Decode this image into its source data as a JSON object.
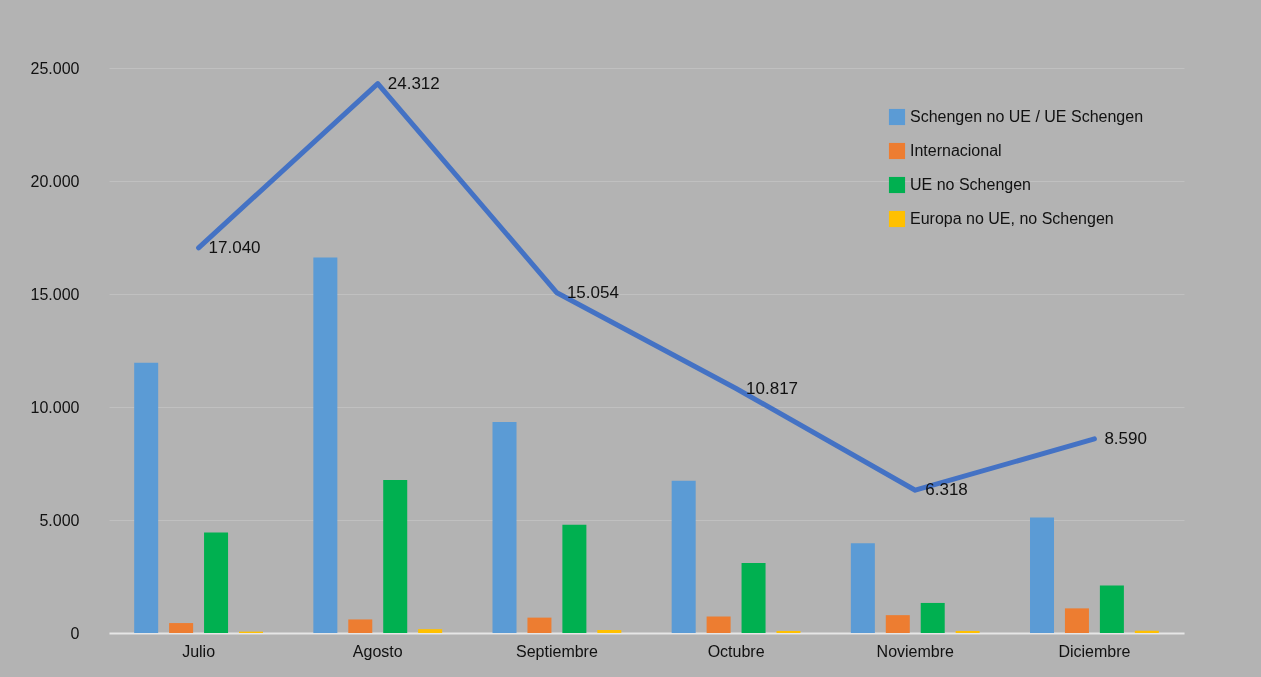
{
  "chart_data": {
    "type": "bar",
    "categories": [
      "Julio",
      "Agosto",
      "Septiembre",
      "Octubre",
      "Noviembre",
      "Diciembre"
    ],
    "series": [
      {
        "name": "Schengen no UE / UE Schengen",
        "color": "#5b9bd5",
        "values": [
          11960,
          16610,
          9340,
          6740,
          3970,
          5110
        ]
      },
      {
        "name": "Internacional",
        "color": "#ed7d31",
        "values": [
          440,
          600,
          680,
          730,
          790,
          1090
        ]
      },
      {
        "name": "UE no Schengen",
        "color": "#00b050",
        "values": [
          4450,
          6770,
          4790,
          3100,
          1330,
          2100
        ]
      },
      {
        "name": "Europa no UE, no Schengen",
        "color": "#ffc000",
        "values": [
          60,
          170,
          130,
          90,
          90,
          100
        ]
      },
      {
        "type": "line",
        "color": "#4472c4",
        "values": [
          17040,
          24312,
          15054,
          10817,
          6318,
          8590
        ],
        "value_labels": [
          "17.040",
          "24.312",
          "15.054",
          "10.817",
          "6.318",
          "8.590"
        ]
      }
    ],
    "ylim": [
      0,
      25000
    ],
    "yticks": [
      {
        "value": 0,
        "label": "0"
      },
      {
        "value": 5000,
        "label": "5.000"
      },
      {
        "value": 10000,
        "label": "10.000"
      },
      {
        "value": 15000,
        "label": "15.000"
      },
      {
        "value": 20000,
        "label": "20.000"
      },
      {
        "value": 25000,
        "label": "25.000"
      }
    ],
    "grid": "y",
    "legend": "top right"
  }
}
